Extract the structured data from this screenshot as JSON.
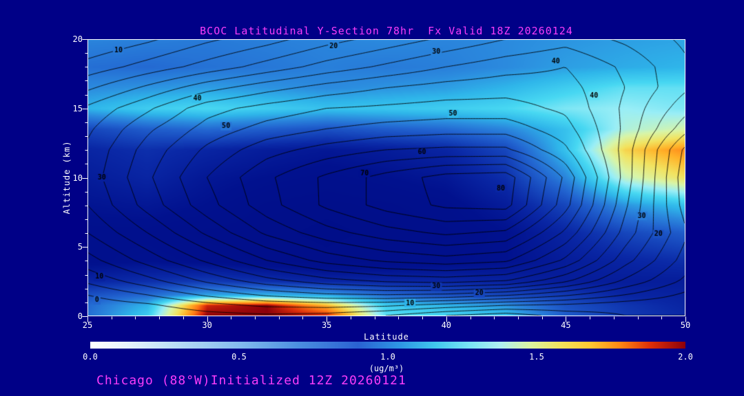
{
  "colors": {
    "background": "#000087",
    "accent": "#fa3cfa",
    "axis_text": "#ffffff",
    "contour_line": "#000000"
  },
  "footer": {
    "text": "Chicago (88°W)Initialized 12Z 20260121"
  },
  "chart_data": {
    "type": "filled_contour_cross_section",
    "title": "BCOC Latitudinal Y-Section 78hr  Fx Valid 18Z 20260124",
    "xlabel": "Latitude",
    "ylabel": "Altitude (km)",
    "xlim": [
      25,
      50
    ],
    "ylim": [
      0,
      20
    ],
    "x_ticks": [
      25,
      30,
      35,
      40,
      45,
      50
    ],
    "y_ticks": [
      0,
      5,
      10,
      15,
      20
    ],
    "minor_tick_step": 1,
    "grid": false,
    "colorbar": {
      "min": 0.0,
      "max": 2.0,
      "ticks": [
        "0.0",
        "0.5",
        "1.0",
        "1.5",
        "2.0"
      ],
      "units": "(ug/m³)",
      "stops": [
        [
          0,
          "#ffffff"
        ],
        [
          6,
          "#e8f4fc"
        ],
        [
          15,
          "#b6dcf5"
        ],
        [
          25,
          "#84bcee"
        ],
        [
          35,
          "#4b8ee0"
        ],
        [
          45,
          "#2a62d2"
        ],
        [
          52,
          "#2e96e4"
        ],
        [
          58,
          "#40c8ee"
        ],
        [
          64,
          "#7ce4f4"
        ],
        [
          69,
          "#b0f0f0"
        ],
        [
          74,
          "#ddf5a0"
        ],
        [
          79,
          "#f2e35c"
        ],
        [
          84,
          "#ffc832"
        ],
        [
          89,
          "#ff8714"
        ],
        [
          94,
          "#e03008"
        ],
        [
          100,
          "#8c000a"
        ]
      ]
    },
    "colormap": [
      [
        0.0,
        "#000c85"
      ],
      [
        0.18,
        "#01118e"
      ],
      [
        0.32,
        "#0a28a6"
      ],
      [
        0.45,
        "#1646bc"
      ],
      [
        0.58,
        "#2264d0"
      ],
      [
        0.72,
        "#2b8ade"
      ],
      [
        0.85,
        "#2fb6ea"
      ],
      [
        1.0,
        "#48d8f2"
      ],
      [
        1.15,
        "#9aeef6"
      ],
      [
        1.3,
        "#d8f5a8"
      ],
      [
        1.45,
        "#f2e360"
      ],
      [
        1.6,
        "#ffb42a"
      ],
      [
        1.75,
        "#ff7814"
      ],
      [
        1.88,
        "#dc2d0a"
      ],
      [
        2.0,
        "#8c000a"
      ]
    ],
    "fill": {
      "units": "ug/m3",
      "lats": [
        25,
        27.5,
        30,
        32.5,
        35,
        37.5,
        40,
        42.5,
        45,
        47.5,
        50
      ],
      "alts": [
        0,
        0.75,
        1.5,
        2.5,
        4,
        6,
        8,
        10,
        12,
        13.5,
        15,
        16.5,
        18,
        20
      ],
      "values": [
        [
          0.62,
          0.95,
          2.0,
          2.0,
          1.9,
          1.05,
          1.0,
          0.9,
          0.55,
          0.4,
          0.32
        ],
        [
          0.6,
          0.85,
          1.9,
          2.0,
          1.6,
          0.95,
          0.85,
          0.75,
          0.5,
          0.38,
          0.3
        ],
        [
          0.5,
          0.6,
          0.8,
          0.85,
          0.8,
          0.6,
          0.5,
          0.45,
          0.4,
          0.3,
          0.28
        ],
        [
          0.3,
          0.35,
          0.4,
          0.35,
          0.3,
          0.3,
          0.3,
          0.28,
          0.25,
          0.25,
          0.25
        ],
        [
          0.15,
          0.18,
          0.15,
          0.12,
          0.1,
          0.12,
          0.15,
          0.18,
          0.25,
          0.3,
          0.35
        ],
        [
          0.15,
          0.15,
          0.12,
          0.1,
          0.08,
          0.1,
          0.12,
          0.18,
          0.3,
          0.45,
          0.55
        ],
        [
          0.2,
          0.22,
          0.18,
          0.12,
          0.1,
          0.12,
          0.15,
          0.25,
          0.45,
          0.75,
          0.9
        ],
        [
          0.25,
          0.3,
          0.22,
          0.18,
          0.15,
          0.18,
          0.22,
          0.35,
          0.7,
          1.25,
          1.45
        ],
        [
          0.3,
          0.35,
          0.3,
          0.25,
          0.22,
          0.25,
          0.3,
          0.45,
          0.9,
          1.5,
          1.7
        ],
        [
          0.45,
          0.55,
          0.6,
          0.55,
          0.5,
          0.55,
          0.6,
          0.7,
          0.9,
          1.2,
          1.3
        ],
        [
          0.85,
          0.95,
          1.0,
          0.95,
          0.9,
          0.92,
          0.95,
          1.0,
          1.1,
          1.15,
          1.1
        ],
        [
          0.72,
          0.75,
          0.78,
          0.75,
          0.72,
          0.75,
          0.78,
          0.85,
          0.95,
          1.05,
          1.05
        ],
        [
          0.62,
          0.6,
          0.63,
          0.65,
          0.68,
          0.66,
          0.68,
          0.72,
          0.78,
          0.82,
          0.85
        ],
        [
          0.7,
          0.68,
          0.66,
          0.68,
          0.7,
          0.72,
          0.7,
          0.72,
          0.75,
          0.78,
          0.8
        ]
      ]
    },
    "contours": {
      "min": -10,
      "max": 85,
      "step": 5,
      "values": [
        [
          0,
          1,
          3,
          4,
          3,
          0,
          -5,
          -8,
          -3,
          0,
          0
        ],
        [
          2,
          4,
          8,
          11,
          12,
          11,
          8,
          5,
          4,
          2,
          1
        ],
        [
          5,
          10,
          16,
          21,
          24,
          25,
          24,
          21,
          16,
          10,
          4
        ],
        [
          11,
          18,
          26,
          33,
          38,
          41,
          42,
          40,
          31,
          19,
          9
        ],
        [
          18,
          27,
          36,
          45,
          52,
          56,
          58,
          56,
          44,
          27,
          13
        ],
        [
          25,
          35,
          46,
          56,
          63,
          68,
          71,
          69,
          54,
          33,
          16
        ],
        [
          30,
          42,
          53,
          63,
          71,
          77,
          81,
          82,
          62,
          36,
          13
        ],
        [
          32,
          44,
          55,
          64,
          71,
          77,
          82,
          83,
          64,
          38,
          12
        ],
        [
          31,
          42,
          51,
          58,
          62,
          65,
          66,
          66,
          56,
          38,
          14
        ],
        [
          29,
          39,
          47,
          52,
          55,
          57,
          58,
          58,
          52,
          39,
          22
        ],
        [
          26,
          34,
          43,
          47,
          50,
          51,
          52,
          52,
          49,
          39,
          27
        ],
        [
          19,
          26,
          33,
          38,
          42,
          45,
          47,
          48,
          47,
          40,
          31
        ],
        [
          12,
          17,
          22,
          27,
          32,
          36,
          40,
          43,
          45,
          39,
          31
        ],
        [
          5,
          9,
          14,
          18,
          23,
          27,
          31,
          35,
          38,
          34,
          29
        ]
      ],
      "labels": [
        {
          "text": "10",
          "lat": 26.3,
          "alt": 19.2
        },
        {
          "text": "20",
          "lat": 35.3,
          "alt": 19.5
        },
        {
          "text": "30",
          "lat": 39.6,
          "alt": 19.1
        },
        {
          "text": "40",
          "lat": 44.6,
          "alt": 18.4
        },
        {
          "text": "40",
          "lat": 29.6,
          "alt": 15.7
        },
        {
          "text": "50",
          "lat": 30.8,
          "alt": 13.7
        },
        {
          "text": "50",
          "lat": 40.3,
          "alt": 14.6
        },
        {
          "text": "60",
          "lat": 39.0,
          "alt": 11.8
        },
        {
          "text": "70",
          "lat": 36.6,
          "alt": 10.3
        },
        {
          "text": "80",
          "lat": 42.3,
          "alt": 9.2
        },
        {
          "text": "30",
          "lat": 25.6,
          "alt": 10.0
        },
        {
          "text": "10",
          "lat": 25.5,
          "alt": 2.8
        },
        {
          "text": "0",
          "lat": 25.4,
          "alt": 1.1
        },
        {
          "text": "30",
          "lat": 39.6,
          "alt": 2.1
        },
        {
          "text": "20",
          "lat": 41.4,
          "alt": 1.6
        },
        {
          "text": "10",
          "lat": 38.5,
          "alt": 0.9
        },
        {
          "text": "40",
          "lat": 46.2,
          "alt": 15.9
        },
        {
          "text": "30",
          "lat": 48.2,
          "alt": 7.2
        },
        {
          "text": "20",
          "lat": 48.9,
          "alt": 5.9
        }
      ]
    }
  }
}
